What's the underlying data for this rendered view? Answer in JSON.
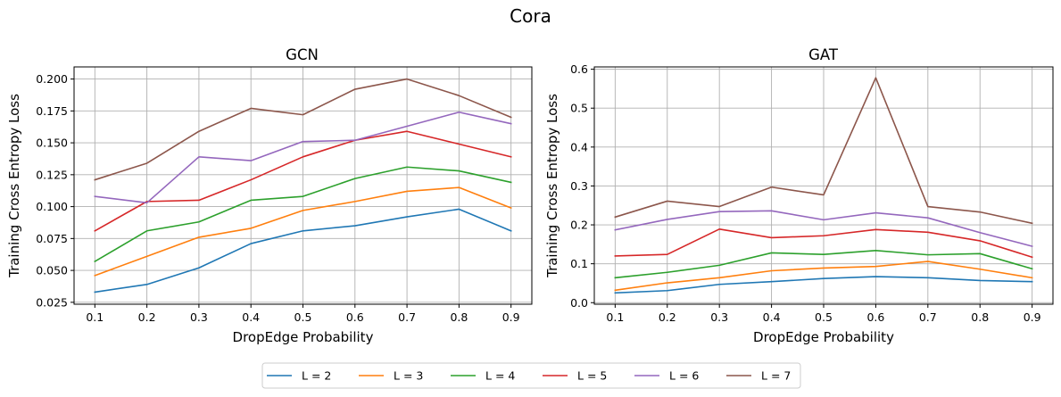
{
  "suptitle": "Cora",
  "colors": [
    "#1f77b4",
    "#ff7f0e",
    "#2ca02c",
    "#d62728",
    "#9467bd",
    "#8c564b"
  ],
  "chart_data": [
    {
      "type": "line",
      "title": "GCN",
      "xlabel": "DropEdge Probability",
      "ylabel": "Training Cross Entropy Loss",
      "x": [
        0.1,
        0.2,
        0.3,
        0.4,
        0.5,
        0.6,
        0.7,
        0.8,
        0.9
      ],
      "x_ticks": [
        "0.1",
        "0.2",
        "0.3",
        "0.4",
        "0.5",
        "0.6",
        "0.7",
        "0.8",
        "0.9"
      ],
      "xlim": [
        0.06,
        0.94
      ],
      "ylim": [
        0.0235,
        0.2095
      ],
      "y_ticks": [
        0.025,
        0.05,
        0.075,
        0.1,
        0.125,
        0.15,
        0.175,
        0.2
      ],
      "y_tick_labels": [
        "0.025",
        "0.050",
        "0.075",
        "0.100",
        "0.125",
        "0.150",
        "0.175",
        "0.200"
      ],
      "grid": true,
      "series": [
        {
          "name": "L = 2",
          "values": [
            0.033,
            0.039,
            0.052,
            0.071,
            0.081,
            0.085,
            0.092,
            0.098,
            0.081
          ]
        },
        {
          "name": "L = 3",
          "values": [
            0.046,
            0.061,
            0.076,
            0.083,
            0.097,
            0.104,
            0.112,
            0.115,
            0.099
          ]
        },
        {
          "name": "L = 4",
          "values": [
            0.057,
            0.081,
            0.088,
            0.105,
            0.108,
            0.122,
            0.131,
            0.128,
            0.119
          ]
        },
        {
          "name": "L = 5",
          "values": [
            0.081,
            0.104,
            0.105,
            0.121,
            0.139,
            0.152,
            0.159,
            0.149,
            0.139
          ]
        },
        {
          "name": "L = 6",
          "values": [
            0.108,
            0.103,
            0.139,
            0.136,
            0.151,
            0.152,
            0.163,
            0.174,
            0.165
          ]
        },
        {
          "name": "L = 7",
          "values": [
            0.121,
            0.134,
            0.159,
            0.177,
            0.172,
            0.192,
            0.2,
            0.187,
            0.17
          ]
        }
      ]
    },
    {
      "type": "line",
      "title": "GAT",
      "xlabel": "DropEdge Probability",
      "ylabel": "Training Cross Entropy Loss",
      "x": [
        0.1,
        0.2,
        0.3,
        0.4,
        0.5,
        0.6,
        0.7,
        0.8,
        0.9
      ],
      "x_ticks": [
        "0.1",
        "0.2",
        "0.3",
        "0.4",
        "0.5",
        "0.6",
        "0.7",
        "0.8",
        "0.9"
      ],
      "xlim": [
        0.06,
        0.94
      ],
      "ylim": [
        -0.004,
        0.606
      ],
      "y_ticks": [
        0.0,
        0.1,
        0.2,
        0.3,
        0.4,
        0.5,
        0.6
      ],
      "y_tick_labels": [
        "0.0",
        "0.1",
        "0.2",
        "0.3",
        "0.4",
        "0.5",
        "0.6"
      ],
      "grid": true,
      "series": [
        {
          "name": "L = 2",
          "values": [
            0.025,
            0.031,
            0.047,
            0.054,
            0.062,
            0.067,
            0.064,
            0.057,
            0.054
          ]
        },
        {
          "name": "L = 3",
          "values": [
            0.032,
            0.051,
            0.064,
            0.082,
            0.089,
            0.093,
            0.106,
            0.086,
            0.064
          ]
        },
        {
          "name": "L = 4",
          "values": [
            0.064,
            0.078,
            0.096,
            0.128,
            0.124,
            0.134,
            0.123,
            0.126,
            0.087
          ]
        },
        {
          "name": "L = 5",
          "values": [
            0.12,
            0.124,
            0.189,
            0.167,
            0.172,
            0.188,
            0.181,
            0.159,
            0.117
          ]
        },
        {
          "name": "L = 6",
          "values": [
            0.187,
            0.214,
            0.234,
            0.236,
            0.213,
            0.231,
            0.218,
            0.18,
            0.145
          ]
        },
        {
          "name": "L = 7",
          "values": [
            0.22,
            0.261,
            0.247,
            0.297,
            0.277,
            0.578,
            0.247,
            0.233,
            0.204
          ]
        }
      ]
    }
  ],
  "legend": {
    "placement": "bottom-center",
    "ncol": 6,
    "entries": [
      "L = 2",
      "L = 3",
      "L = 4",
      "L = 5",
      "L = 6",
      "L = 7"
    ]
  }
}
